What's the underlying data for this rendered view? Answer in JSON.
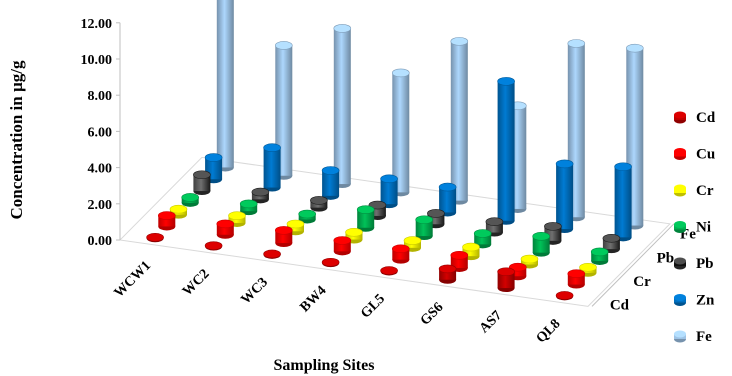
{
  "chart_data": {
    "type": "bar",
    "subtype": "3d-column",
    "title": "",
    "xlabel": "Sampling Sites",
    "ylabel": "Concentration in µg/g",
    "ylim": [
      0,
      12
    ],
    "yticks": [
      "0.00",
      "2.00",
      "4.00",
      "6.00",
      "8.00",
      "10.00",
      "12.00"
    ],
    "depth_axis_labels": [
      "Cd",
      "Cr",
      "Pb",
      "Fe"
    ],
    "legend_position": "right",
    "grid": false,
    "categories": [
      "WCW1",
      "WC2",
      "WC3",
      "BW4",
      "GL5",
      "GS6",
      "AS7",
      "QL8"
    ],
    "series": [
      {
        "name": "Cd",
        "color": "#c00000",
        "values": [
          0.05,
          0.05,
          0.05,
          0.05,
          0.05,
          0.6,
          0.9,
          0.05
        ]
      },
      {
        "name": "Cu",
        "color": "#ff0000",
        "values": [
          0.6,
          0.6,
          0.7,
          0.6,
          0.6,
          0.7,
          0.5,
          0.6
        ]
      },
      {
        "name": "Cr",
        "color": "#ffff00",
        "values": [
          0.3,
          0.4,
          0.4,
          0.4,
          0.4,
          0.5,
          0.3,
          0.3
        ]
      },
      {
        "name": "Ni",
        "color": "#00b050",
        "values": [
          0.3,
          0.4,
          0.3,
          1.0,
          0.9,
          0.6,
          0.9,
          0.5
        ]
      },
      {
        "name": "Pb",
        "color": "#000000",
        "values": [
          0.9,
          0.4,
          0.4,
          0.6,
          0.6,
          0.6,
          0.8,
          0.6
        ]
      },
      {
        "name": "Zn",
        "color": "#0070c0",
        "values": [
          1.2,
          2.2,
          1.4,
          1.4,
          1.4,
          7.7,
          3.6,
          3.9
        ]
      },
      {
        "name": "Fe",
        "color": "#9dc3e6",
        "values": [
          10.9,
          7.2,
          8.6,
          6.6,
          8.8,
          5.7,
          9.6,
          9.8
        ]
      }
    ]
  }
}
